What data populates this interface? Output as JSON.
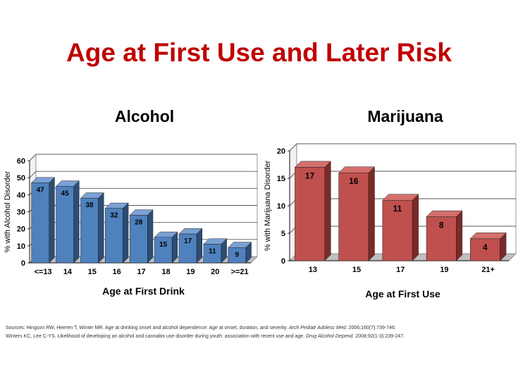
{
  "slide": {
    "title": "Age at First Use and Later Risk"
  },
  "colors": {
    "title": "#c00000",
    "alcohol_bar_front": "#4f81bd",
    "alcohol_bar_side": "#2c4d75",
    "alcohol_bar_top": "#7ba0d4",
    "marijuana_bar_front": "#c0504d",
    "marijuana_bar_side": "#7b2a28",
    "marijuana_bar_top": "#d46f6c"
  },
  "sources": {
    "line1": {
      "plain": "Sources: Hingson RW, Heeren T, Winter MR. Age at drinking onset and alcohol dependence: Age at onset, duration, and severity.",
      "journal": "Arch Pediatr Adolesc Med.",
      "tail": "2006;160(7):739-746."
    },
    "line2": {
      "plain": "Winters KC, Lee C-YS. Likelihood of developing an alcohol and cannabis use disorder during youth: association with recent use and age.",
      "journal": "Drug Alcohol Depend.",
      "tail": "2008;92(1-3):239-247."
    }
  },
  "chart_data": [
    {
      "type": "bar",
      "title": "Alcohol",
      "xlabel": "Age at First Drink",
      "ylabel": "% with Alcohol Disorder",
      "categories": [
        "<=13",
        "14",
        "15",
        "16",
        "17",
        "18",
        "19",
        "20",
        ">=21"
      ],
      "values": [
        47,
        45,
        38,
        32,
        28,
        15,
        17,
        11,
        9
      ],
      "ylim": [
        0,
        60
      ],
      "yticks": [
        0,
        10,
        20,
        30,
        40,
        50,
        60
      ],
      "grid": true,
      "legend": "none",
      "style": "3d"
    },
    {
      "type": "bar",
      "title": "Marijuana",
      "xlabel": "Age at First Use",
      "ylabel": "% with Marijuana Disorder",
      "categories": [
        "13",
        "15",
        "17",
        "19",
        "21+"
      ],
      "values": [
        17,
        16,
        11,
        8,
        4
      ],
      "ylim": [
        0,
        20
      ],
      "yticks": [
        0,
        5,
        10,
        15,
        20
      ],
      "grid": true,
      "legend": "none",
      "style": "3d"
    }
  ]
}
